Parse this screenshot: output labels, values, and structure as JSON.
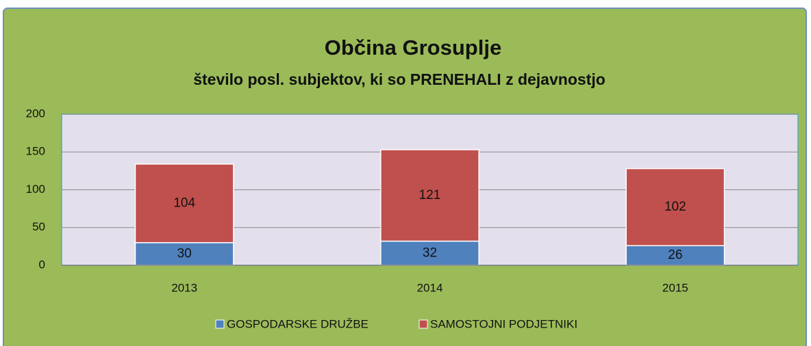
{
  "chart_data": {
    "type": "bar",
    "stacked": true,
    "title": "Občina Grosuplje",
    "subtitle": "število posl. subjektov, ki so PRENEHALI z dejavnostjo",
    "categories": [
      "2013",
      "2014",
      "2015"
    ],
    "series": [
      {
        "name": "GOSPODARSKE DRUŽBE",
        "color": "#4f81bd",
        "values": [
          30,
          32,
          26
        ]
      },
      {
        "name": "SAMOSTOJNI PODJETNIKI",
        "color": "#c0504d",
        "values": [
          104,
          121,
          102
        ]
      }
    ],
    "ylim": [
      0,
      200
    ],
    "yticks": [
      0,
      50,
      100,
      150,
      200
    ],
    "grid": true,
    "legend": "bottom"
  }
}
